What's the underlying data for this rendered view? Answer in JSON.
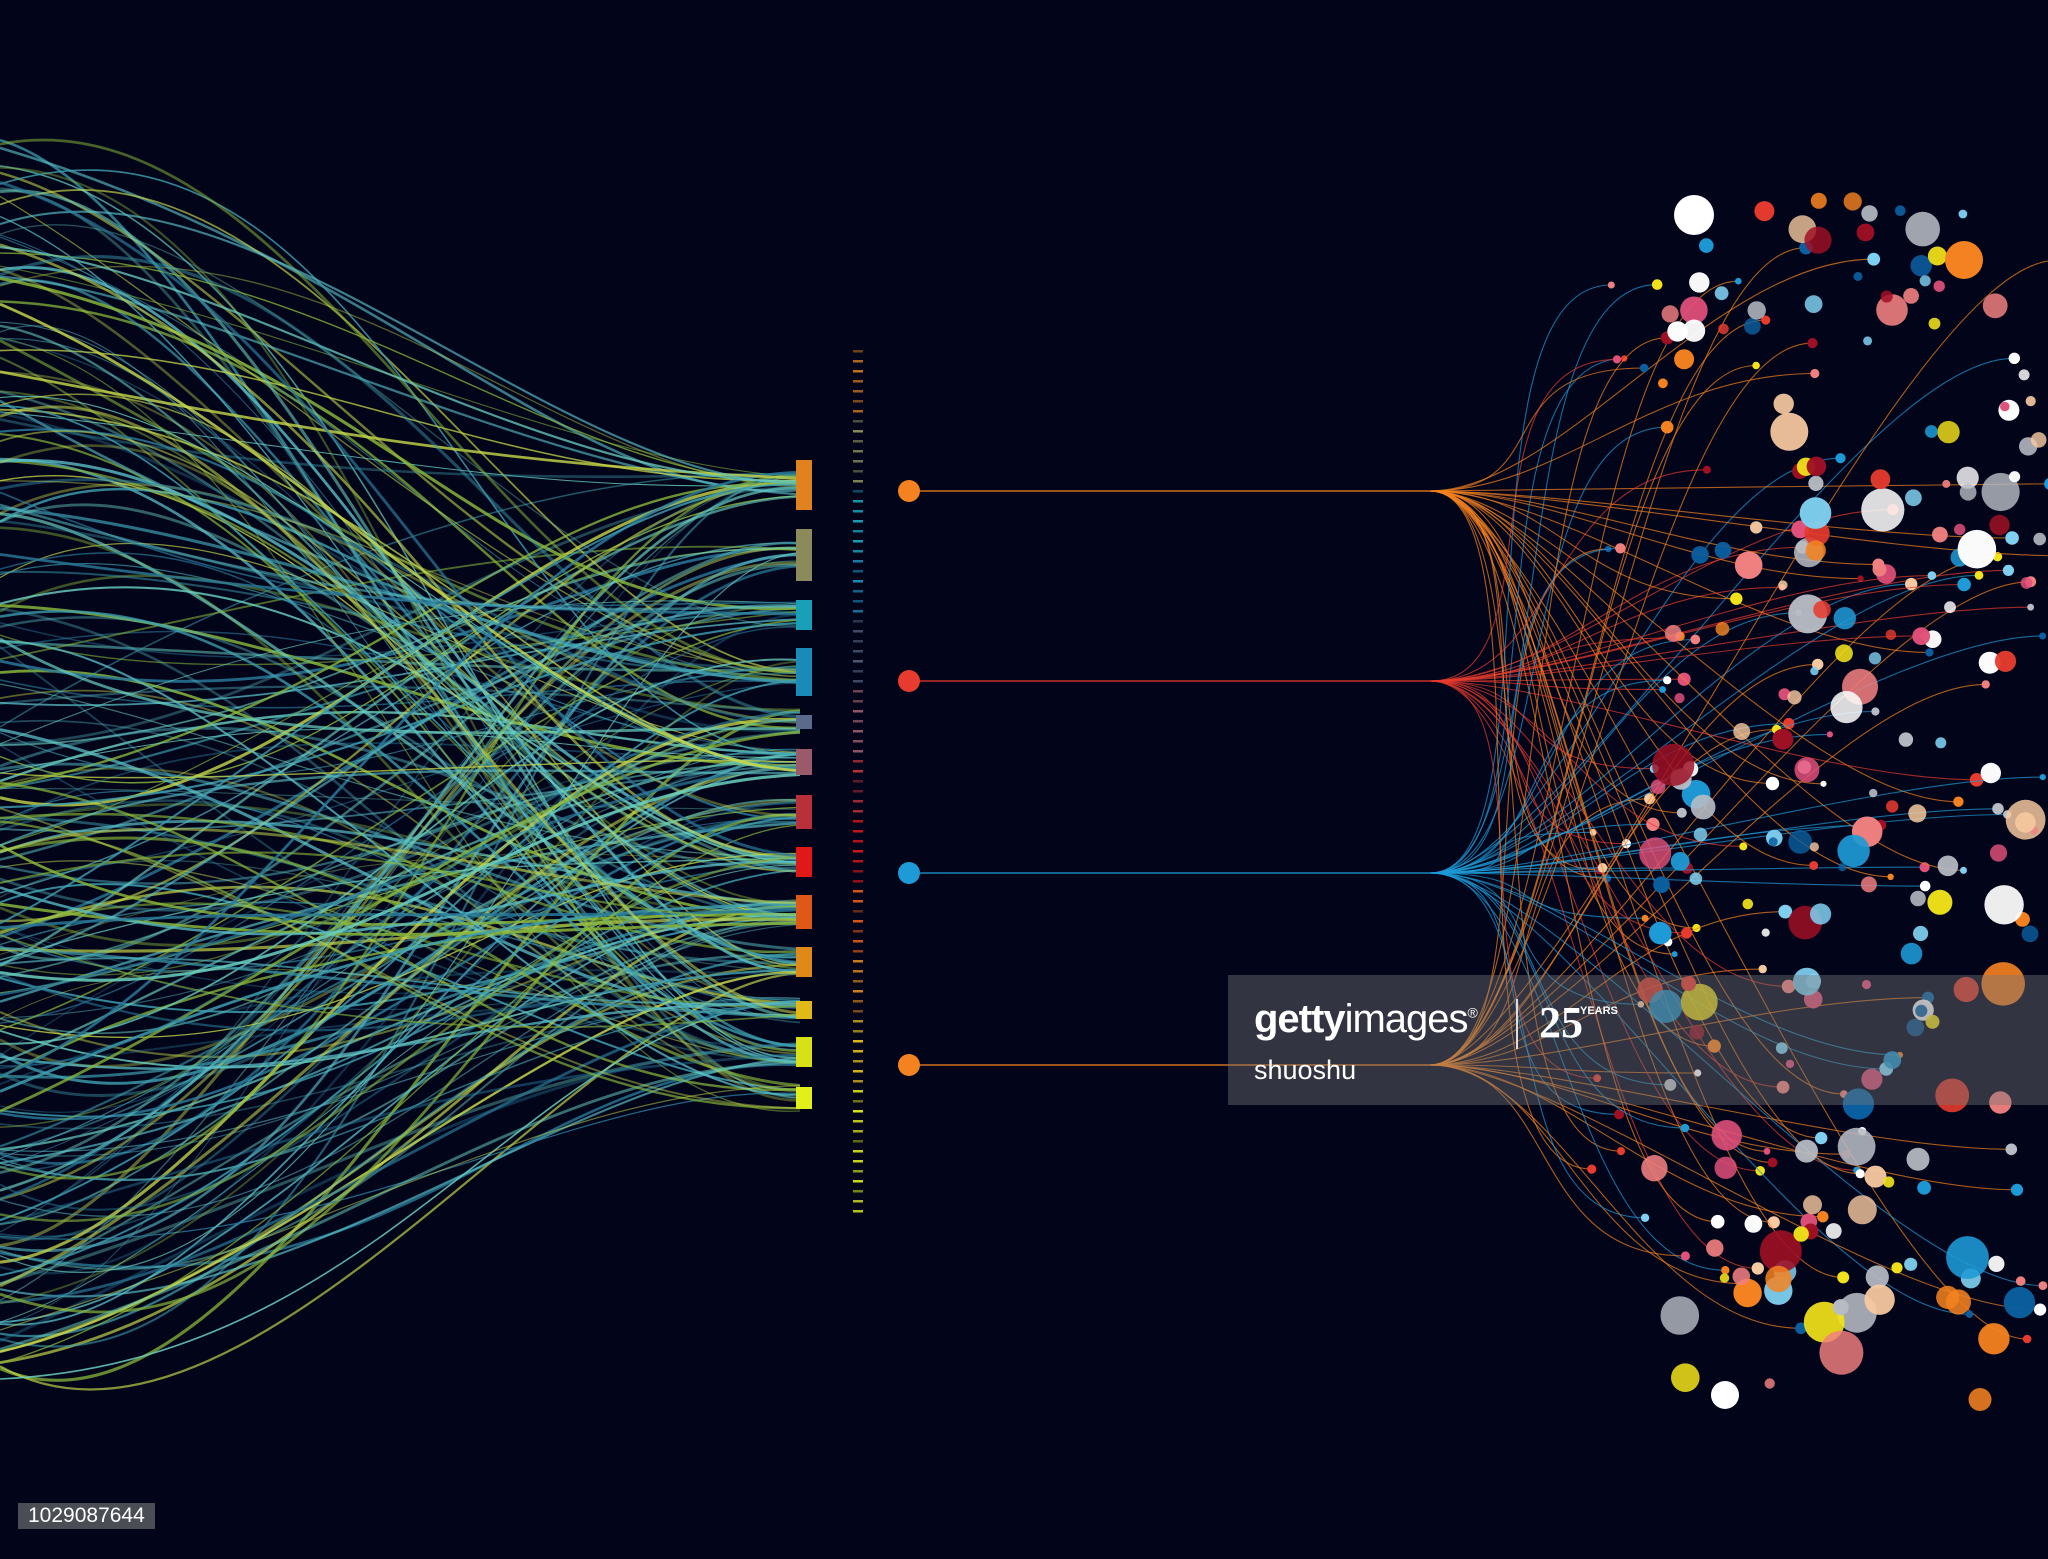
{
  "watermark": {
    "brand_bold": "getty",
    "brand_light": "images",
    "registered_mark": "®",
    "anniversary_number": "25",
    "anniversary_label": "YEARS",
    "author": "shuoshu"
  },
  "image_id": "1029087644",
  "colors": {
    "background": "#02051a",
    "strand_palette": [
      "#3ea0b0",
      "#8ab83a",
      "#5ac0c8",
      "#c8d84a",
      "#2a7a9a",
      "#6ad0c0"
    ],
    "bundle_blocks": [
      "#e0821e",
      "#8a8a5a",
      "#18a0b8",
      "#1a8ab8",
      "#5a6a8a",
      "#9a5a6a",
      "#b8303a",
      "#e01818",
      "#e05818",
      "#e08818",
      "#e0b818",
      "#d8e018",
      "#e0f018"
    ],
    "node_colors": [
      "#f58220",
      "#e63b2e",
      "#1e9ad6",
      "#f58220"
    ],
    "dot_palette": [
      "#ffffff",
      "#f58220",
      "#e63b2e",
      "#1e9ad6",
      "#0b5fa0",
      "#b7bcc4",
      "#f7c9a0",
      "#f2e21a",
      "#f08080",
      "#a01024",
      "#e0507a",
      "#7fd0f0"
    ]
  }
}
